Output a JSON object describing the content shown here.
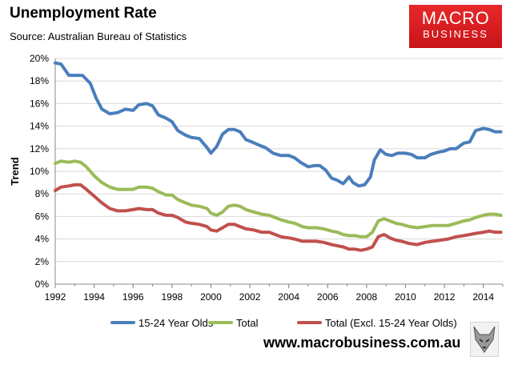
{
  "header": {
    "title": "Unemployment Rate",
    "subtitle": "Source: Australian Bureau of Statistics"
  },
  "logo": {
    "line1": "MACRO",
    "line2": "BUSINESS",
    "bg_color": "#d91e22"
  },
  "footer": {
    "url": "www.macrobusiness.com.au",
    "fox_icon": "fox-icon"
  },
  "chart_data": {
    "type": "line",
    "title": "Unemployment Rate",
    "subtitle": "Source: Australian Bureau of Statistics",
    "xlabel": "",
    "ylabel": "Trend",
    "xlim": [
      1992,
      2015
    ],
    "ylim": [
      0,
      20
    ],
    "x_ticks": [
      "1992",
      "1994",
      "1996",
      "1998",
      "2000",
      "2002",
      "2004",
      "2006",
      "2008",
      "2010",
      "2012",
      "2014"
    ],
    "y_ticks": [
      "0%",
      "2%",
      "4%",
      "6%",
      "8%",
      "10%",
      "12%",
      "14%",
      "16%",
      "18%",
      "20%"
    ],
    "grid": "horizontal",
    "legend_position": "bottom",
    "series": [
      {
        "name": "15-24 Year Olds",
        "color": "#4a7ebb",
        "points": [
          [
            1992,
            19.6
          ],
          [
            1992.3,
            19.5
          ],
          [
            1992.7,
            18.5
          ],
          [
            1993,
            18.5
          ],
          [
            1993.4,
            18.5
          ],
          [
            1993.8,
            17.8
          ],
          [
            1994.1,
            16.5
          ],
          [
            1994.4,
            15.5
          ],
          [
            1994.8,
            15.1
          ],
          [
            1995.2,
            15.2
          ],
          [
            1995.6,
            15.5
          ],
          [
            1996,
            15.4
          ],
          [
            1996.3,
            15.9
          ],
          [
            1996.7,
            16.0
          ],
          [
            1997,
            15.8
          ],
          [
            1997.3,
            15.0
          ],
          [
            1997.7,
            14.7
          ],
          [
            1998,
            14.4
          ],
          [
            1998.3,
            13.6
          ],
          [
            1998.7,
            13.2
          ],
          [
            1999,
            13.0
          ],
          [
            1999.4,
            12.9
          ],
          [
            1999.8,
            12.1
          ],
          [
            2000,
            11.6
          ],
          [
            2000.3,
            12.2
          ],
          [
            2000.6,
            13.3
          ],
          [
            2000.9,
            13.7
          ],
          [
            2001.2,
            13.7
          ],
          [
            2001.5,
            13.5
          ],
          [
            2001.8,
            12.8
          ],
          [
            2002.1,
            12.6
          ],
          [
            2002.5,
            12.3
          ],
          [
            2002.8,
            12.1
          ],
          [
            2003.2,
            11.6
          ],
          [
            2003.6,
            11.4
          ],
          [
            2004,
            11.4
          ],
          [
            2004.3,
            11.2
          ],
          [
            2004.6,
            10.8
          ],
          [
            2005,
            10.4
          ],
          [
            2005.3,
            10.5
          ],
          [
            2005.6,
            10.5
          ],
          [
            2005.9,
            10.1
          ],
          [
            2006.2,
            9.4
          ],
          [
            2006.5,
            9.2
          ],
          [
            2006.8,
            8.9
          ],
          [
            2007.1,
            9.5
          ],
          [
            2007.3,
            9.0
          ],
          [
            2007.6,
            8.7
          ],
          [
            2007.9,
            8.8
          ],
          [
            2008.2,
            9.5
          ],
          [
            2008.4,
            11.0
          ],
          [
            2008.7,
            11.9
          ],
          [
            2009,
            11.5
          ],
          [
            2009.3,
            11.4
          ],
          [
            2009.6,
            11.6
          ],
          [
            2010,
            11.6
          ],
          [
            2010.3,
            11.5
          ],
          [
            2010.6,
            11.2
          ],
          [
            2011,
            11.2
          ],
          [
            2011.3,
            11.5
          ],
          [
            2011.7,
            11.7
          ],
          [
            2012,
            11.8
          ],
          [
            2012.3,
            12.0
          ],
          [
            2012.6,
            12.0
          ],
          [
            2013,
            12.5
          ],
          [
            2013.3,
            12.6
          ],
          [
            2013.6,
            13.6
          ],
          [
            2014,
            13.8
          ],
          [
            2014.3,
            13.7
          ],
          [
            2014.6,
            13.5
          ],
          [
            2014.9,
            13.5
          ]
        ]
      },
      {
        "name": "Total",
        "color": "#9bbb59",
        "points": [
          [
            1992,
            10.7
          ],
          [
            1992.3,
            10.9
          ],
          [
            1992.7,
            10.8
          ],
          [
            1993,
            10.9
          ],
          [
            1993.3,
            10.8
          ],
          [
            1993.6,
            10.4
          ],
          [
            1994,
            9.6
          ],
          [
            1994.4,
            9.0
          ],
          [
            1994.8,
            8.6
          ],
          [
            1995.2,
            8.4
          ],
          [
            1995.6,
            8.4
          ],
          [
            1996,
            8.4
          ],
          [
            1996.3,
            8.6
          ],
          [
            1996.7,
            8.6
          ],
          [
            1997,
            8.5
          ],
          [
            1997.3,
            8.2
          ],
          [
            1997.7,
            7.9
          ],
          [
            1998,
            7.9
          ],
          [
            1998.3,
            7.5
          ],
          [
            1998.7,
            7.2
          ],
          [
            1999,
            7.0
          ],
          [
            1999.4,
            6.9
          ],
          [
            1999.8,
            6.7
          ],
          [
            2000,
            6.3
          ],
          [
            2000.3,
            6.1
          ],
          [
            2000.6,
            6.4
          ],
          [
            2000.9,
            6.9
          ],
          [
            2001.2,
            7.0
          ],
          [
            2001.5,
            6.9
          ],
          [
            2001.8,
            6.6
          ],
          [
            2002.2,
            6.4
          ],
          [
            2002.6,
            6.2
          ],
          [
            2003,
            6.1
          ],
          [
            2003.3,
            5.9
          ],
          [
            2003.6,
            5.7
          ],
          [
            2004,
            5.5
          ],
          [
            2004.3,
            5.4
          ],
          [
            2004.7,
            5.1
          ],
          [
            2005,
            5.0
          ],
          [
            2005.4,
            5.0
          ],
          [
            2005.8,
            4.9
          ],
          [
            2006.2,
            4.7
          ],
          [
            2006.5,
            4.6
          ],
          [
            2006.8,
            4.4
          ],
          [
            2007.1,
            4.3
          ],
          [
            2007.4,
            4.3
          ],
          [
            2007.7,
            4.2
          ],
          [
            2008,
            4.2
          ],
          [
            2008.3,
            4.6
          ],
          [
            2008.6,
            5.6
          ],
          [
            2008.9,
            5.8
          ],
          [
            2009.2,
            5.6
          ],
          [
            2009.5,
            5.4
          ],
          [
            2009.8,
            5.3
          ],
          [
            2010.2,
            5.1
          ],
          [
            2010.6,
            5.0
          ],
          [
            2011,
            5.1
          ],
          [
            2011.4,
            5.2
          ],
          [
            2011.8,
            5.2
          ],
          [
            2012.2,
            5.2
          ],
          [
            2012.6,
            5.4
          ],
          [
            2013,
            5.6
          ],
          [
            2013.3,
            5.7
          ],
          [
            2013.6,
            5.9
          ],
          [
            2014,
            6.1
          ],
          [
            2014.3,
            6.2
          ],
          [
            2014.6,
            6.2
          ],
          [
            2014.9,
            6.1
          ]
        ]
      },
      {
        "name": "Total (Excl. 15-24 Year Olds)",
        "color": "#c0504d",
        "points": [
          [
            1992,
            8.3
          ],
          [
            1992.3,
            8.6
          ],
          [
            1992.7,
            8.7
          ],
          [
            1993,
            8.8
          ],
          [
            1993.3,
            8.8
          ],
          [
            1993.6,
            8.4
          ],
          [
            1994,
            7.8
          ],
          [
            1994.4,
            7.2
          ],
          [
            1994.8,
            6.7
          ],
          [
            1995.2,
            6.5
          ],
          [
            1995.6,
            6.5
          ],
          [
            1996,
            6.6
          ],
          [
            1996.3,
            6.7
          ],
          [
            1996.7,
            6.6
          ],
          [
            1997,
            6.6
          ],
          [
            1997.3,
            6.3
          ],
          [
            1997.7,
            6.1
          ],
          [
            1998,
            6.1
          ],
          [
            1998.3,
            5.9
          ],
          [
            1998.7,
            5.5
          ],
          [
            1999,
            5.4
          ],
          [
            1999.4,
            5.3
          ],
          [
            1999.8,
            5.1
          ],
          [
            2000,
            4.8
          ],
          [
            2000.3,
            4.7
          ],
          [
            2000.6,
            5.0
          ],
          [
            2000.9,
            5.3
          ],
          [
            2001.2,
            5.3
          ],
          [
            2001.5,
            5.1
          ],
          [
            2001.8,
            4.9
          ],
          [
            2002.2,
            4.8
          ],
          [
            2002.6,
            4.6
          ],
          [
            2003,
            4.6
          ],
          [
            2003.3,
            4.4
          ],
          [
            2003.6,
            4.2
          ],
          [
            2004,
            4.1
          ],
          [
            2004.3,
            4.0
          ],
          [
            2004.7,
            3.8
          ],
          [
            2005,
            3.8
          ],
          [
            2005.4,
            3.8
          ],
          [
            2005.8,
            3.7
          ],
          [
            2006.2,
            3.5
          ],
          [
            2006.5,
            3.4
          ],
          [
            2006.8,
            3.3
          ],
          [
            2007.1,
            3.1
          ],
          [
            2007.4,
            3.1
          ],
          [
            2007.7,
            3.0
          ],
          [
            2008,
            3.1
          ],
          [
            2008.3,
            3.3
          ],
          [
            2008.6,
            4.2
          ],
          [
            2008.9,
            4.4
          ],
          [
            2009.2,
            4.1
          ],
          [
            2009.5,
            3.9
          ],
          [
            2009.8,
            3.8
          ],
          [
            2010.2,
            3.6
          ],
          [
            2010.6,
            3.5
          ],
          [
            2011,
            3.7
          ],
          [
            2011.4,
            3.8
          ],
          [
            2011.8,
            3.9
          ],
          [
            2012.2,
            4.0
          ],
          [
            2012.6,
            4.2
          ],
          [
            2013,
            4.3
          ],
          [
            2013.3,
            4.4
          ],
          [
            2013.6,
            4.5
          ],
          [
            2014,
            4.6
          ],
          [
            2014.3,
            4.7
          ],
          [
            2014.6,
            4.6
          ],
          [
            2014.9,
            4.6
          ]
        ]
      }
    ]
  }
}
